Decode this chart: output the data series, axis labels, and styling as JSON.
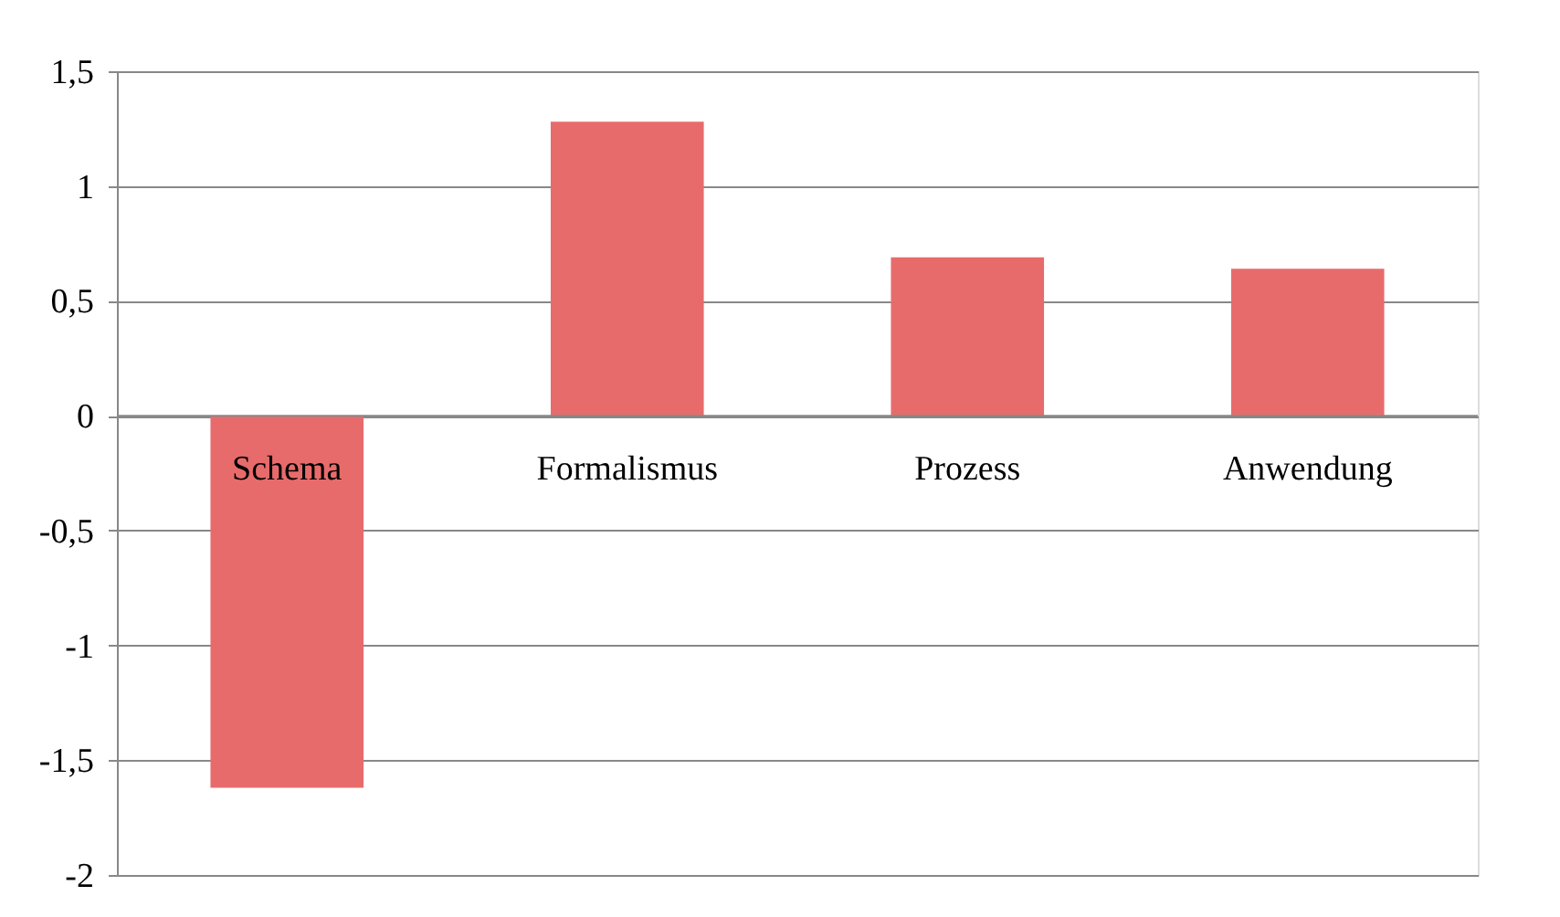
{
  "chart_data": {
    "type": "bar",
    "categories": [
      "Schema",
      "Formalismus",
      "Prozess",
      "Anwendung"
    ],
    "values": [
      -1.62,
      1.28,
      0.69,
      0.64
    ],
    "color": "#e86b6b",
    "ylim": [
      -2,
      1.5
    ],
    "yticks": [
      -2,
      {
        "value": -1.5,
        "label": "-1,5"
      },
      -1,
      {
        "value": -0.5,
        "label": "-0,5"
      },
      0,
      {
        "value": 0.5,
        "label": "0,5"
      },
      1,
      {
        "value": 1.5,
        "label": "1,5"
      }
    ],
    "grid": "y"
  }
}
